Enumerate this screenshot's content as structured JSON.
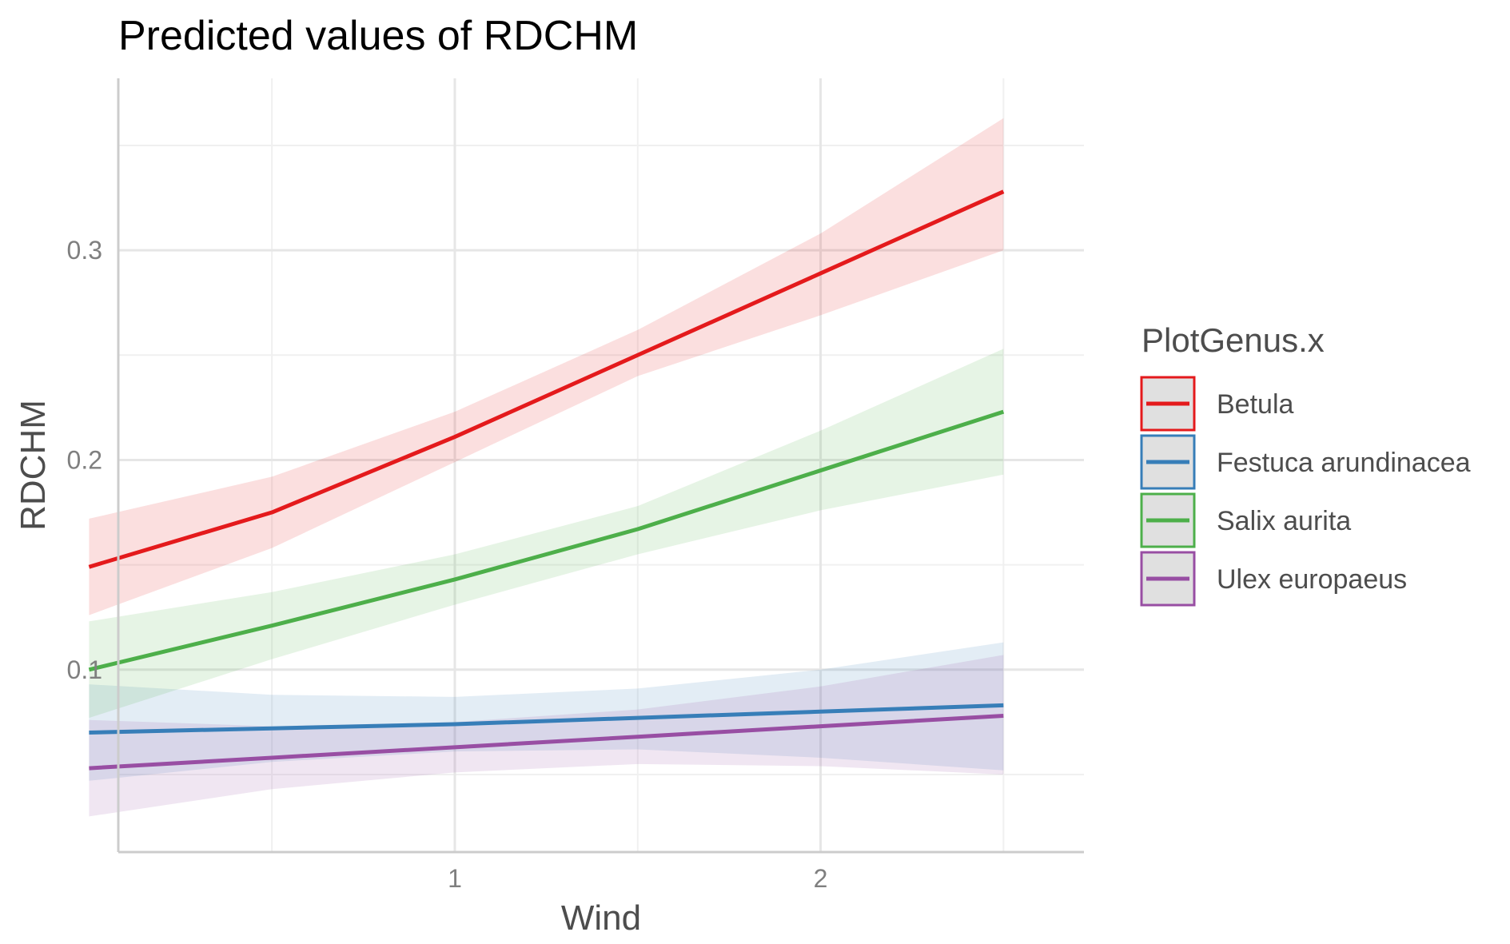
{
  "chart_data": {
    "type": "line",
    "title": "Predicted values of RDCHM",
    "xlabel": "Wind",
    "ylabel": "RDCHM",
    "xlim": [
      0.08,
      2.72
    ],
    "ylim": [
      0.013,
      0.382
    ],
    "x_ticks": [
      {
        "value": 1,
        "label": "1"
      },
      {
        "value": 2,
        "label": "2"
      }
    ],
    "x_minor_ticks": [
      0.5,
      1.5,
      2.5
    ],
    "y_ticks": [
      {
        "value": 0.1,
        "label": "0.1"
      },
      {
        "value": 0.2,
        "label": "0.2"
      },
      {
        "value": 0.3,
        "label": "0.3"
      }
    ],
    "y_minor_ticks": [
      0.05,
      0.15,
      0.25,
      0.35
    ],
    "grid": true,
    "legend": {
      "title": "PlotGenus.x",
      "position": "right"
    },
    "x": [
      0.0,
      0.5,
      1.0,
      1.5,
      2.0,
      2.5
    ],
    "series": [
      {
        "name": "Betula",
        "color": "#e41a1c",
        "x": [
          0.0,
          0.5,
          1.0,
          1.5,
          2.0,
          2.5
        ],
        "values": [
          0.149,
          0.175,
          0.211,
          0.25,
          0.289,
          0.328
        ],
        "lower": [
          0.126,
          0.158,
          0.199,
          0.24,
          0.269,
          0.3
        ],
        "upper": [
          0.172,
          0.192,
          0.223,
          0.262,
          0.308,
          0.363
        ]
      },
      {
        "name": "Festuca arundinacea",
        "color": "#377eb8",
        "x": [
          0.0,
          0.5,
          1.0,
          1.5,
          2.0,
          2.5
        ],
        "values": [
          0.07,
          0.072,
          0.074,
          0.077,
          0.08,
          0.083
        ],
        "lower": [
          0.047,
          0.056,
          0.061,
          0.062,
          0.058,
          0.052
        ],
        "upper": [
          0.093,
          0.088,
          0.087,
          0.091,
          0.1,
          0.113
        ]
      },
      {
        "name": "Salix aurita",
        "color": "#4daf4a",
        "x": [
          0.0,
          0.5,
          1.0,
          1.5,
          2.0,
          2.5
        ],
        "values": [
          0.1,
          0.121,
          0.143,
          0.167,
          0.195,
          0.223
        ],
        "lower": [
          0.077,
          0.105,
          0.131,
          0.155,
          0.176,
          0.193
        ],
        "upper": [
          0.123,
          0.137,
          0.155,
          0.178,
          0.214,
          0.253
        ]
      },
      {
        "name": "Ulex europaeus",
        "color": "#984ea3",
        "x": [
          0.0,
          0.5,
          1.0,
          1.5,
          2.0,
          2.5
        ],
        "values": [
          0.053,
          0.058,
          0.063,
          0.068,
          0.073,
          0.078
        ],
        "lower": [
          0.03,
          0.043,
          0.051,
          0.055,
          0.054,
          0.05
        ],
        "upper": [
          0.076,
          0.073,
          0.075,
          0.081,
          0.092,
          0.107
        ]
      }
    ]
  }
}
